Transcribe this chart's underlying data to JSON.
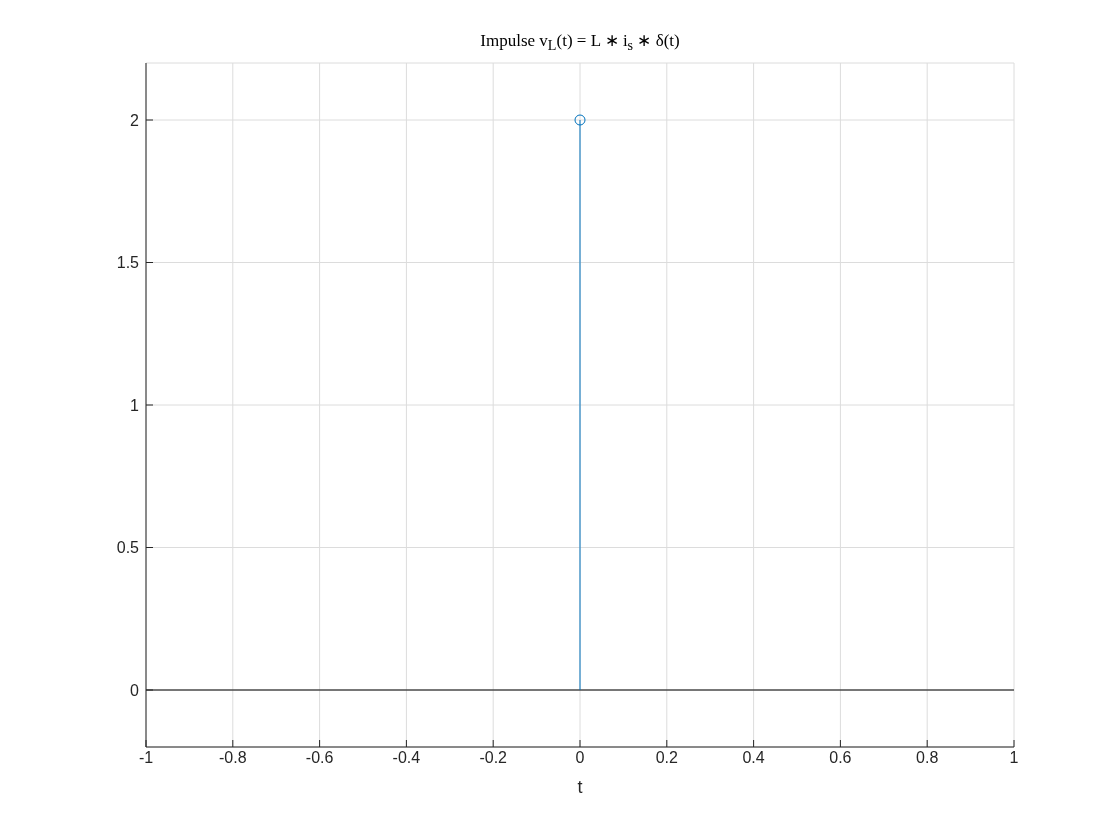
{
  "chart_data": {
    "type": "lollipop",
    "title": "Impulse v$_{L}$(t) = L ∗ i$_{s}$ ∗ δ(t)",
    "xlabel": "t",
    "x": [
      0
    ],
    "values": [
      2
    ],
    "color": "#0072bd",
    "marker": "circle",
    "xlim": [
      -1,
      1
    ],
    "xticks": [
      -1,
      -0.8,
      -0.6,
      -0.4,
      -0.2,
      0,
      0.2,
      0.4,
      0.6,
      0.8,
      1
    ],
    "ylim": [
      -0.2,
      2.2
    ],
    "yticks": [
      0,
      0.5,
      1,
      1.5,
      2
    ],
    "grid": true,
    "ref_lines": [
      {
        "axis": "y",
        "value": 0,
        "color": "#000000"
      }
    ]
  }
}
